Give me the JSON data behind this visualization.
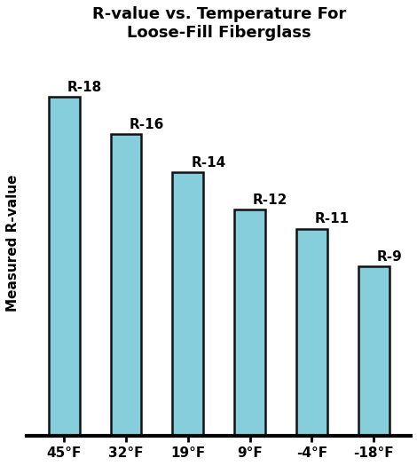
{
  "title": "R-value vs. Temperature For\nLoose-Fill Fiberglass",
  "ylabel": "Measured R-value",
  "categories": [
    "45°F",
    "32°F",
    "19°F",
    "9°F",
    "-4°F",
    "-18°F"
  ],
  "values": [
    18,
    16,
    14,
    12,
    11,
    9
  ],
  "bar_labels": [
    "R-18",
    "R-16",
    "R-14",
    "R-12",
    "R-11",
    "R-9"
  ],
  "bar_color": "#87CEDC",
  "bar_edge_color": "#111111",
  "bar_edge_width": 1.8,
  "bar_width": 0.5,
  "ylim": [
    0,
    20.5
  ],
  "title_fontsize": 13,
  "tick_fontsize": 11,
  "bar_label_fontsize": 11,
  "background_color": "#ffffff",
  "ylabel_fontsize": 11
}
